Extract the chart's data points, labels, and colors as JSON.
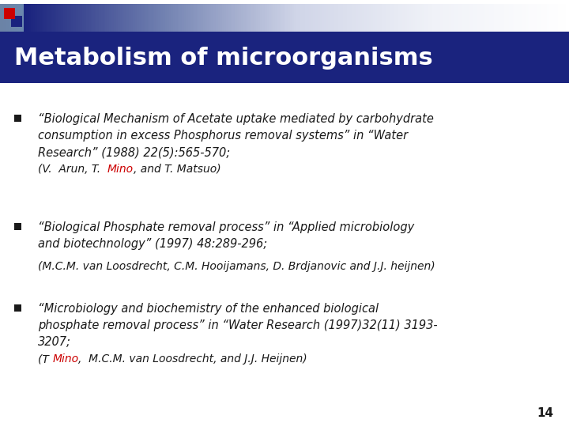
{
  "title": "Metabolism of microorganisms",
  "title_bg_color": "#1a237e",
  "title_text_color": "#ffffff",
  "slide_bg_color": "#ffffff",
  "dark_color": "#1a1a1a",
  "red_color": "#cc0000",
  "header_bar_color": "#9099b8",
  "corner_sq1": "#cc0000",
  "corner_sq2": "#1a237e",
  "bullet1_main": "“Biological Mechanism of Acetate uptake mediated by carbohydrate\nconsumption in excess Phosphorus removal systems” in “Water\nResearch” (1988) 22(5):565-570;",
  "bullet1_sub_pre": "(V.  Arun, T.  ",
  "bullet1_sub_red": "Mino",
  "bullet1_sub_post": ", and T. Matsuo)",
  "bullet2_main": "“Biological Phosphate removal process” in “Applied microbiology\nand biotechnology” (1997) 48:289-296;",
  "bullet2_sub": "(M.C.M. van Loosdrecht, C.M. Hooijamans, D. Brdjanovic and J.J. heijnen)",
  "bullet3_main": "“Microbiology and biochemistry of the enhanced biological\nphosphate removal process” in “Water Research (1997)32(11) 3193-\n3207;",
  "bullet3_sub_pre": "(T ",
  "bullet3_sub_red": "Mino",
  "bullet3_sub_post": ",  M.C.M. van Loosdrecht, and J.J. Heijnen)",
  "page_number": "14"
}
